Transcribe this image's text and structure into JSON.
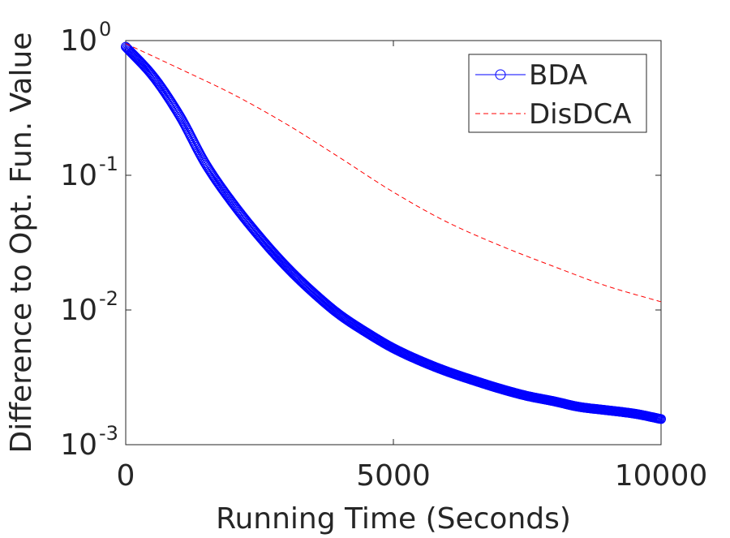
{
  "chart_data": {
    "type": "line",
    "xlabel": "Running Time (Seconds)",
    "ylabel": "Difference to Opt. Fun. Value",
    "xlim": [
      0,
      10000
    ],
    "ylim": [
      0.001,
      1
    ],
    "yscale": "log",
    "x_ticks": [
      {
        "value": 0,
        "label": "0"
      },
      {
        "value": 5000,
        "label": "5000"
      },
      {
        "value": 10000,
        "label": "10000"
      }
    ],
    "y_ticks": [
      {
        "value": 1,
        "base": "10",
        "exp": "0"
      },
      {
        "value": 0.1,
        "base": "10",
        "exp": "-1"
      },
      {
        "value": 0.01,
        "base": "10",
        "exp": "-2"
      },
      {
        "value": 0.001,
        "base": "10",
        "exp": "-3"
      }
    ],
    "grid": false,
    "legend_position": "top-right",
    "series": [
      {
        "name": "BDA",
        "style": "line-circle-markers",
        "color": "#0000ff",
        "x": [
          0,
          500,
          1000,
          1500,
          2000,
          2500,
          3000,
          3500,
          4000,
          4500,
          5000,
          5500,
          6000,
          6500,
          7000,
          7500,
          8000,
          8500,
          9000,
          9500,
          10000
        ],
        "y": [
          0.9,
          0.55,
          0.28,
          0.12,
          0.062,
          0.035,
          0.021,
          0.0135,
          0.0092,
          0.0068,
          0.0052,
          0.0042,
          0.0035,
          0.003,
          0.0026,
          0.0023,
          0.0021,
          0.0019,
          0.0018,
          0.0017,
          0.00155
        ]
      },
      {
        "name": "DisDCA",
        "style": "dashed",
        "color": "#ff0000",
        "x": [
          0,
          1000,
          2000,
          3000,
          4000,
          5000,
          6000,
          7000,
          8000,
          9000,
          10000
        ],
        "y": [
          0.95,
          0.62,
          0.4,
          0.24,
          0.135,
          0.075,
          0.045,
          0.03,
          0.021,
          0.015,
          0.0115
        ]
      }
    ]
  }
}
